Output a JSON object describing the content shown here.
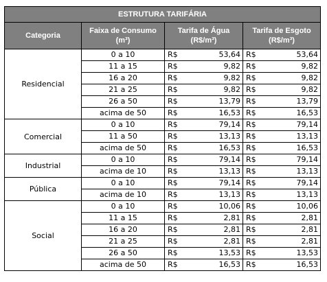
{
  "title": "ESTRUTURA TARIFÁRIA",
  "headers": {
    "categoria": "Categoria",
    "faixa_line1": "Faixa de Consumo",
    "faixa_line2": "(m³)",
    "agua_line1": "Tarifa de Água",
    "agua_line2": "(R$/m³)",
    "esgoto_line1": "Tarifa de Esgoto",
    "esgoto_line2": "(R$/m³)"
  },
  "currency": "R$",
  "categories": [
    {
      "name": "Residencial",
      "rows": [
        {
          "faixa": "0 a 10",
          "agua": "53,64",
          "esgoto": "53,64"
        },
        {
          "faixa": "11 a 15",
          "agua": "9,82",
          "esgoto": "9,82"
        },
        {
          "faixa": "16 a 20",
          "agua": "9,82",
          "esgoto": "9,82"
        },
        {
          "faixa": "21 a 25",
          "agua": "9,82",
          "esgoto": "9,82"
        },
        {
          "faixa": "26 a 50",
          "agua": "13,79",
          "esgoto": "13,79"
        },
        {
          "faixa": "acima de 50",
          "agua": "16,53",
          "esgoto": "16,53"
        }
      ]
    },
    {
      "name": "Comercial",
      "rows": [
        {
          "faixa": "0 a 10",
          "agua": "79,14",
          "esgoto": "79,14"
        },
        {
          "faixa": "11 a 50",
          "agua": "13,13",
          "esgoto": "13,13"
        },
        {
          "faixa": "acima de 50",
          "agua": "16,53",
          "esgoto": "16,53"
        }
      ]
    },
    {
      "name": "Industrial",
      "rows": [
        {
          "faixa": "0 a 10",
          "agua": "79,14",
          "esgoto": "79,14"
        },
        {
          "faixa": "acima de 10",
          "agua": "13,13",
          "esgoto": "13,13"
        }
      ]
    },
    {
      "name": "Pública",
      "rows": [
        {
          "faixa": "0 a 10",
          "agua": "79,14",
          "esgoto": "79,14"
        },
        {
          "faixa": "acima de 10",
          "agua": "13,13",
          "esgoto": "13,13"
        }
      ]
    },
    {
      "name": "Social",
      "rows": [
        {
          "faixa": "0 a 10",
          "agua": "10,06",
          "esgoto": "10,06"
        },
        {
          "faixa": "11 a 15",
          "agua": "2,81",
          "esgoto": "2,81"
        },
        {
          "faixa": "16 a 20",
          "agua": "2,81",
          "esgoto": "2,81"
        },
        {
          "faixa": "21 a 25",
          "agua": "2,81",
          "esgoto": "2,81"
        },
        {
          "faixa": "26 a 50",
          "agua": "13,53",
          "esgoto": "13,53"
        },
        {
          "faixa": "acima de 50",
          "agua": "16,53",
          "esgoto": "16,53"
        }
      ]
    }
  ]
}
